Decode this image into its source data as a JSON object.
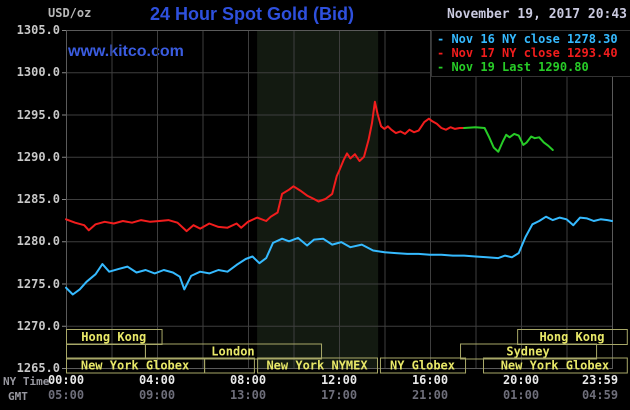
{
  "header": {
    "unit_label": "USD/oz",
    "title": "24 Hour Spot Gold (Bid)",
    "datetime": "November 19, 2017 20:43",
    "watermark": "www.kitco.com"
  },
  "legend": {
    "items": [
      {
        "label": "Nov 16 NY close",
        "value": "1278.30",
        "color": "#35baff"
      },
      {
        "label": "Nov 17 NY close",
        "value": "1293.40",
        "color": "#f21d1d"
      },
      {
        "label": "Nov 19 Last",
        "value": "1290.80",
        "color": "#27cc27"
      }
    ]
  },
  "axis": {
    "ny_time_label": "NY Time",
    "gmt_label": "GMT",
    "ny_ticks": [
      "00:00",
      "04:00",
      "08:00",
      "12:00",
      "16:00",
      "20:00",
      "23:59"
    ],
    "gmt_ticks": [
      "05:00",
      "09:00",
      "13:00",
      "17:00",
      "21:00",
      "01:00",
      "04:59"
    ]
  },
  "chart_data": {
    "type": "line",
    "title": "24 Hour Spot Gold (Bid)",
    "ylabel": "USD/oz",
    "ylim": [
      1265,
      1305
    ],
    "y_tick_step": 5,
    "y_tick_labels": [
      "1305.0",
      "1300.0",
      "1295.0",
      "1290.0",
      "1285.0",
      "1280.0",
      "1275.0",
      "1270.0",
      "1265.0"
    ],
    "x_tick_hours": [
      0,
      4,
      8,
      12,
      16,
      20,
      24
    ],
    "grid": "vertical every 2h, horizontal every $5",
    "legend_position": "top-right",
    "highlight_band_hours": [
      8.4,
      13.72
    ],
    "series": [
      {
        "name": "Nov 16",
        "color": "#35baff",
        "points": [
          [
            0.0,
            1274.5
          ],
          [
            0.3,
            1273.7
          ],
          [
            0.6,
            1274.3
          ],
          [
            0.9,
            1275.2
          ],
          [
            1.3,
            1276.1
          ],
          [
            1.6,
            1277.3
          ],
          [
            1.9,
            1276.4
          ],
          [
            2.3,
            1276.7
          ],
          [
            2.7,
            1277.0
          ],
          [
            3.1,
            1276.3
          ],
          [
            3.5,
            1276.6
          ],
          [
            3.9,
            1276.2
          ],
          [
            4.3,
            1276.6
          ],
          [
            4.7,
            1276.3
          ],
          [
            5.0,
            1275.8
          ],
          [
            5.2,
            1274.3
          ],
          [
            5.5,
            1275.9
          ],
          [
            5.9,
            1276.4
          ],
          [
            6.3,
            1276.2
          ],
          [
            6.7,
            1276.6
          ],
          [
            7.1,
            1276.4
          ],
          [
            7.5,
            1277.2
          ],
          [
            7.9,
            1277.9
          ],
          [
            8.2,
            1278.2
          ],
          [
            8.5,
            1277.4
          ],
          [
            8.8,
            1278.0
          ],
          [
            9.1,
            1279.8
          ],
          [
            9.5,
            1280.3
          ],
          [
            9.8,
            1280.0
          ],
          [
            10.2,
            1280.4
          ],
          [
            10.6,
            1279.5
          ],
          [
            10.9,
            1280.2
          ],
          [
            11.3,
            1280.3
          ],
          [
            11.7,
            1279.6
          ],
          [
            12.1,
            1279.9
          ],
          [
            12.5,
            1279.3
          ],
          [
            13.0,
            1279.6
          ],
          [
            13.5,
            1278.9
          ],
          [
            14.0,
            1278.7
          ],
          [
            14.5,
            1278.6
          ],
          [
            15.0,
            1278.5
          ],
          [
            15.5,
            1278.5
          ],
          [
            16.0,
            1278.4
          ],
          [
            16.5,
            1278.4
          ],
          [
            17.0,
            1278.3
          ],
          [
            17.5,
            1278.3
          ],
          [
            18.0,
            1278.2
          ],
          [
            18.5,
            1278.1
          ],
          [
            19.0,
            1278.0
          ],
          [
            19.3,
            1278.3
          ],
          [
            19.6,
            1278.1
          ],
          [
            19.9,
            1278.6
          ],
          [
            20.2,
            1280.5
          ],
          [
            20.5,
            1282.0
          ],
          [
            20.8,
            1282.4
          ],
          [
            21.1,
            1282.9
          ],
          [
            21.4,
            1282.5
          ],
          [
            21.7,
            1282.8
          ],
          [
            22.0,
            1282.6
          ],
          [
            22.3,
            1281.9
          ],
          [
            22.6,
            1282.8
          ],
          [
            22.9,
            1282.7
          ],
          [
            23.2,
            1282.4
          ],
          [
            23.5,
            1282.6
          ],
          [
            23.8,
            1282.5
          ],
          [
            24.0,
            1282.4
          ]
        ]
      },
      {
        "name": "Nov 17",
        "color": "#f21d1d",
        "points": [
          [
            0.0,
            1282.6
          ],
          [
            0.4,
            1282.2
          ],
          [
            0.8,
            1281.9
          ],
          [
            1.0,
            1281.3
          ],
          [
            1.3,
            1282.0
          ],
          [
            1.7,
            1282.3
          ],
          [
            2.1,
            1282.1
          ],
          [
            2.5,
            1282.4
          ],
          [
            2.9,
            1282.2
          ],
          [
            3.3,
            1282.5
          ],
          [
            3.7,
            1282.3
          ],
          [
            4.1,
            1282.4
          ],
          [
            4.5,
            1282.5
          ],
          [
            4.9,
            1282.2
          ],
          [
            5.3,
            1281.2
          ],
          [
            5.6,
            1281.9
          ],
          [
            5.9,
            1281.5
          ],
          [
            6.3,
            1282.1
          ],
          [
            6.7,
            1281.7
          ],
          [
            7.1,
            1281.6
          ],
          [
            7.5,
            1282.1
          ],
          [
            7.7,
            1281.6
          ],
          [
            8.0,
            1282.3
          ],
          [
            8.4,
            1282.8
          ],
          [
            8.8,
            1282.4
          ],
          [
            9.0,
            1282.9
          ],
          [
            9.3,
            1283.4
          ],
          [
            9.5,
            1285.6
          ],
          [
            9.8,
            1286.1
          ],
          [
            10.0,
            1286.5
          ],
          [
            10.3,
            1286.0
          ],
          [
            10.6,
            1285.4
          ],
          [
            10.9,
            1285.0
          ],
          [
            11.1,
            1284.7
          ],
          [
            11.4,
            1285.0
          ],
          [
            11.7,
            1285.6
          ],
          [
            11.9,
            1287.7
          ],
          [
            12.0,
            1288.3
          ],
          [
            12.2,
            1289.6
          ],
          [
            12.35,
            1290.4
          ],
          [
            12.5,
            1289.8
          ],
          [
            12.7,
            1290.3
          ],
          [
            12.9,
            1289.5
          ],
          [
            13.1,
            1290.0
          ],
          [
            13.3,
            1292.0
          ],
          [
            13.45,
            1294.0
          ],
          [
            13.58,
            1296.5
          ],
          [
            13.7,
            1295.0
          ],
          [
            13.85,
            1293.6
          ],
          [
            14.0,
            1293.3
          ],
          [
            14.15,
            1293.6
          ],
          [
            14.3,
            1293.2
          ],
          [
            14.5,
            1292.8
          ],
          [
            14.7,
            1293.0
          ],
          [
            14.9,
            1292.7
          ],
          [
            15.1,
            1293.2
          ],
          [
            15.3,
            1292.9
          ],
          [
            15.5,
            1293.1
          ],
          [
            15.75,
            1294.1
          ],
          [
            15.95,
            1294.5
          ],
          [
            16.1,
            1294.2
          ],
          [
            16.3,
            1293.9
          ],
          [
            16.5,
            1293.4
          ],
          [
            16.7,
            1293.2
          ],
          [
            16.9,
            1293.5
          ],
          [
            17.1,
            1293.3
          ],
          [
            17.3,
            1293.4
          ],
          [
            17.5,
            1293.4
          ]
        ]
      },
      {
        "name": "Nov 19",
        "color": "#27cc27",
        "points": [
          [
            17.5,
            1293.4
          ],
          [
            18.0,
            1293.5
          ],
          [
            18.4,
            1293.4
          ],
          [
            18.6,
            1292.3
          ],
          [
            18.8,
            1291.1
          ],
          [
            19.0,
            1290.6
          ],
          [
            19.2,
            1291.8
          ],
          [
            19.35,
            1292.6
          ],
          [
            19.5,
            1292.3
          ],
          [
            19.7,
            1292.7
          ],
          [
            19.9,
            1292.5
          ],
          [
            20.1,
            1291.4
          ],
          [
            20.25,
            1291.7
          ],
          [
            20.45,
            1292.4
          ],
          [
            20.6,
            1292.2
          ],
          [
            20.8,
            1292.3
          ],
          [
            21.0,
            1291.7
          ],
          [
            21.2,
            1291.3
          ],
          [
            21.4,
            1290.8
          ]
        ]
      }
    ],
    "sessions": [
      {
        "row": 0,
        "start_h": 0.0,
        "end_h": 4.2,
        "label": "Hong Kong"
      },
      {
        "row": 0,
        "start_h": 19.83,
        "end_h": 24.65,
        "label": "Hong Kong"
      },
      {
        "row": 1,
        "start_h": 0.0,
        "end_h": 3.47,
        "label": ""
      },
      {
        "row": 1,
        "start_h": 3.47,
        "end_h": 11.21,
        "label": "London"
      },
      {
        "row": 1,
        "start_h": 17.32,
        "end_h": 23.3,
        "label": "Sydney"
      },
      {
        "row": 2,
        "start_h": 0.0,
        "end_h": 6.07,
        "label": "New York Globex"
      },
      {
        "row": 2,
        "start_h": 6.07,
        "end_h": 8.26,
        "label": ""
      },
      {
        "row": 2,
        "start_h": 8.4,
        "end_h": 13.67,
        "label": "New York NYMEX"
      },
      {
        "row": 2,
        "start_h": 13.8,
        "end_h": 17.54,
        "label": "NY Globex"
      },
      {
        "row": 2,
        "start_h": 18.33,
        "end_h": 24.65,
        "label": "New York Globex"
      }
    ]
  },
  "colors": {
    "background": "#000000",
    "grid": "#3e3e3e",
    "plot_border": "#5a5a5a",
    "band": "#131a11",
    "session_border": "#a8a868",
    "session_text": "#e8e868",
    "y_label": "#c8c8c8",
    "ny_tick": "#e9e9e9",
    "gmt_tick": "#6e6e7a",
    "axis_name": "#9898a0",
    "title": "#2e50dd",
    "watermark": "#3a5ce0",
    "datetime": "#c9c9df",
    "unit": "#b8b8b8",
    "legend_border": "#333333"
  }
}
